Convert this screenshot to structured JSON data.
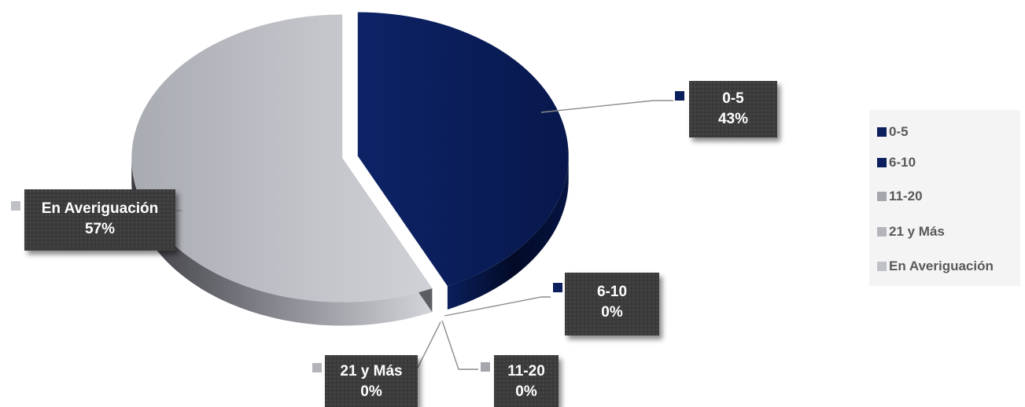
{
  "chart_data": {
    "type": "pie",
    "title": "",
    "categories": [
      "0-5",
      "6-10",
      "11-20",
      "21 y Más",
      "En Averiguación"
    ],
    "values": [
      43,
      0,
      0,
      0,
      57
    ],
    "percent_labels": [
      "43%",
      "0%",
      "0%",
      "0%",
      "57%"
    ],
    "colors": [
      "#0b1f5c",
      "#0b1f5c",
      "#a6a7ad",
      "#b4b5bb",
      "#bfc1c7"
    ],
    "exploded": true,
    "legend_position": "right"
  }
}
